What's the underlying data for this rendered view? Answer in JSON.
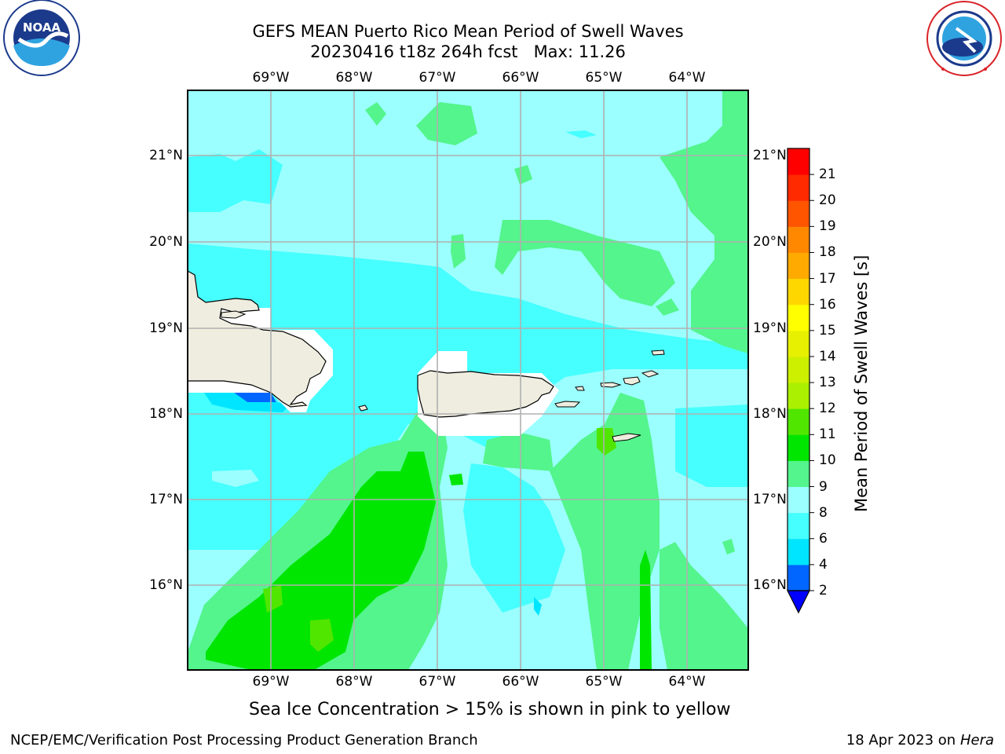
{
  "header": {
    "title_line1": "GEFS MEAN Puerto Rico Mean Period of Swell Waves",
    "title_line2": "20230416 t18z 264h fcst   Max: 11.26"
  },
  "logos": {
    "left": {
      "name": "NOAA",
      "text": "NOAA",
      "ring_text": "NATIONAL OCEANIC AND ATMOSPHERIC ADMINISTRATION · U.S. DEPARTMENT OF COMMERCE",
      "color": "#1b3a8c"
    },
    "right": {
      "name": "National Weather Service",
      "ring_text": "NATIONAL WEATHER SERVICE",
      "color": "#d9252a"
    }
  },
  "map": {
    "x_ticks": [
      "69°W",
      "68°W",
      "67°W",
      "66°W",
      "65°W",
      "64°W"
    ],
    "y_ticks": [
      "21°N",
      "20°N",
      "19°N",
      "18°N",
      "17°N",
      "16°N"
    ],
    "land_color": "#eeeddf",
    "grid_color": "#b0b0b0"
  },
  "colorbar": {
    "label": "Mean Period of Swell Waves [s]",
    "ticks": [
      "2",
      "4",
      "6",
      "8",
      "9",
      "10",
      "11",
      "12",
      "13",
      "14",
      "15",
      "16",
      "17",
      "18",
      "19",
      "20",
      "21"
    ],
    "colors": [
      "#0066ff",
      "#00e5ff",
      "#46ffff",
      "#9bffff",
      "#53f58c",
      "#00e600",
      "#50e600",
      "#aaf000",
      "#ccf000",
      "#e6f000",
      "#ffff00",
      "#ffd700",
      "#ffaa00",
      "#ff8800",
      "#ff5500",
      "#ff2a00",
      "#ff0000"
    ],
    "under_color": "#0000ff",
    "palette": {
      "period_2_4": "#0066ff",
      "period_4_6": "#00e5ff",
      "period_6_8": "#46ffff",
      "period_8_9": "#9bffff",
      "period_9_10": "#53f58c",
      "period_10_11": "#00e600",
      "period_11_12": "#50e600"
    }
  },
  "notes": {
    "sea_ice": "Sea Ice Concentration > 15% is shown in pink to yellow"
  },
  "footer": {
    "left": "NCEP/EMC/Verification Post Processing Product Generation Branch",
    "date": "18 Apr 2023 on ",
    "machine": "Hera"
  }
}
